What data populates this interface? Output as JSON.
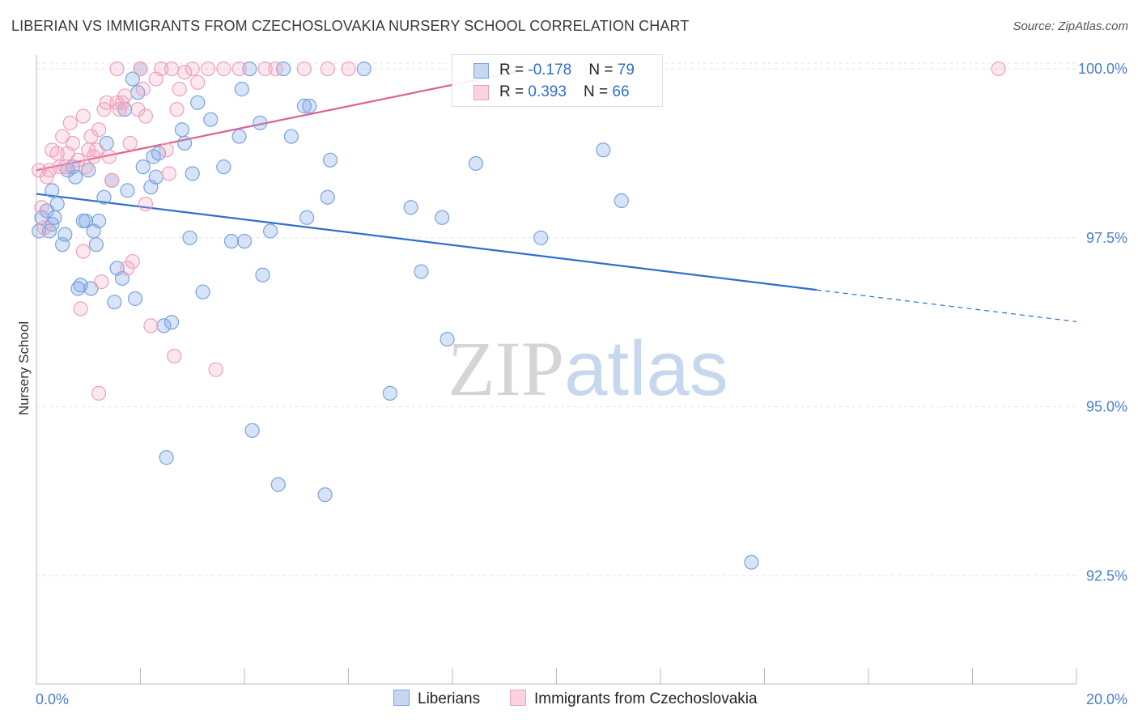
{
  "title": "LIBERIAN VS IMMIGRANTS FROM CZECHOSLOVAKIA NURSERY SCHOOL CORRELATION CHART",
  "source": "Source: ZipAtlas.com",
  "watermark": {
    "zip": "ZIP",
    "atlas": "atlas"
  },
  "legend": {
    "rows": [
      {
        "r_label": "R = ",
        "r_value": "-0.178",
        "n_label": "N = ",
        "n_value": "79"
      },
      {
        "r_label": "R = ",
        "r_value": " 0.393",
        "n_label": "N = ",
        "n_value": "66"
      }
    ]
  },
  "bottom_legend": {
    "series1": "Liberians",
    "series2": "Immigrants from Czechoslovakia"
  },
  "colors": {
    "blue": "#7aa3e0",
    "blue_line": "#2f6fcc",
    "pink": "#f0a0bb",
    "pink_line": "#e0608a",
    "label": "#4a7fd0"
  },
  "chart_data": {
    "type": "scatter",
    "ylabel": "Nursery School",
    "xlim": [
      0,
      20
    ],
    "ylim": [
      90.9,
      100.3
    ],
    "x_tick_labels": [
      "0.0%",
      "20.0%"
    ],
    "y_tick_labels": [
      "100.0%",
      "97.5%",
      "95.0%",
      "92.5%"
    ],
    "y_ticks": [
      100.0,
      97.5,
      95.0,
      92.5
    ],
    "grid": true,
    "series": [
      {
        "name": "Liberians",
        "color": "#7aa3e0",
        "trend": {
          "x": [
            0.0,
            15.0
          ],
          "y": [
            98.15,
            96.73
          ],
          "dashed_to": [
            20.0,
            96.26
          ]
        },
        "points": [
          [
            0.05,
            97.6
          ],
          [
            0.1,
            97.8
          ],
          [
            0.2,
            97.9
          ],
          [
            0.25,
            97.6
          ],
          [
            0.3,
            97.7
          ],
          [
            0.35,
            97.8
          ],
          [
            0.3,
            98.2
          ],
          [
            0.4,
            98.0
          ],
          [
            0.5,
            97.4
          ],
          [
            0.55,
            97.55
          ],
          [
            0.6,
            98.5
          ],
          [
            0.7,
            98.55
          ],
          [
            0.75,
            98.4
          ],
          [
            0.8,
            96.75
          ],
          [
            0.9,
            97.75
          ],
          [
            0.95,
            97.75
          ],
          [
            0.85,
            96.8
          ],
          [
            1.0,
            98.5
          ],
          [
            1.05,
            96.75
          ],
          [
            1.1,
            97.6
          ],
          [
            1.15,
            97.4
          ],
          [
            1.2,
            97.75
          ],
          [
            1.3,
            98.1
          ],
          [
            1.35,
            98.9
          ],
          [
            1.45,
            98.35
          ],
          [
            1.5,
            96.55
          ],
          [
            1.55,
            97.05
          ],
          [
            1.65,
            96.9
          ],
          [
            1.7,
            99.4
          ],
          [
            1.75,
            98.2
          ],
          [
            1.85,
            99.85
          ],
          [
            1.9,
            96.6
          ],
          [
            1.95,
            99.65
          ],
          [
            2.0,
            100.0
          ],
          [
            2.05,
            98.55
          ],
          [
            2.2,
            98.25
          ],
          [
            2.25,
            98.7
          ],
          [
            2.3,
            98.4
          ],
          [
            2.35,
            98.75
          ],
          [
            2.45,
            96.2
          ],
          [
            2.5,
            94.25
          ],
          [
            2.6,
            96.25
          ],
          [
            2.8,
            99.1
          ],
          [
            2.85,
            98.9
          ],
          [
            2.95,
            97.5
          ],
          [
            3.0,
            98.45
          ],
          [
            3.1,
            99.5
          ],
          [
            3.2,
            96.7
          ],
          [
            3.35,
            99.25
          ],
          [
            3.6,
            98.55
          ],
          [
            3.75,
            97.45
          ],
          [
            3.9,
            99.0
          ],
          [
            3.95,
            99.7
          ],
          [
            4.0,
            97.45
          ],
          [
            4.15,
            94.65
          ],
          [
            4.1,
            100.0
          ],
          [
            4.3,
            99.2
          ],
          [
            4.35,
            96.95
          ],
          [
            4.5,
            97.6
          ],
          [
            4.65,
            93.85
          ],
          [
            4.75,
            100.0
          ],
          [
            4.9,
            99.0
          ],
          [
            5.2,
            97.8
          ],
          [
            5.15,
            99.45
          ],
          [
            5.25,
            99.45
          ],
          [
            5.55,
            93.7
          ],
          [
            5.6,
            98.1
          ],
          [
            5.65,
            98.65
          ],
          [
            6.3,
            100.0
          ],
          [
            6.8,
            95.2
          ],
          [
            7.2,
            97.95
          ],
          [
            7.4,
            97.0
          ],
          [
            7.8,
            97.8
          ],
          [
            7.9,
            96.0
          ],
          [
            8.45,
            98.6
          ],
          [
            9.7,
            97.5
          ],
          [
            10.9,
            98.8
          ],
          [
            11.25,
            98.05
          ],
          [
            13.75,
            92.7
          ]
        ]
      },
      {
        "name": "Immigrants from Czechoslovakia",
        "color": "#f0a0bb",
        "trend": {
          "x": [
            0.0,
            9.5
          ],
          "y": [
            98.5,
            100.0
          ]
        },
        "points": [
          [
            0.05,
            98.5
          ],
          [
            0.1,
            97.95
          ],
          [
            0.15,
            97.65
          ],
          [
            0.2,
            98.4
          ],
          [
            0.25,
            98.5
          ],
          [
            0.3,
            98.8
          ],
          [
            0.4,
            98.75
          ],
          [
            0.45,
            98.55
          ],
          [
            0.5,
            99.0
          ],
          [
            0.55,
            98.55
          ],
          [
            0.6,
            98.75
          ],
          [
            0.65,
            99.2
          ],
          [
            0.7,
            98.9
          ],
          [
            0.8,
            98.65
          ],
          [
            0.85,
            96.45
          ],
          [
            0.9,
            99.3
          ],
          [
            0.9,
            97.3
          ],
          [
            0.95,
            98.55
          ],
          [
            1.0,
            98.8
          ],
          [
            1.05,
            99.0
          ],
          [
            1.1,
            98.7
          ],
          [
            1.15,
            98.8
          ],
          [
            1.2,
            99.1
          ],
          [
            1.2,
            95.2
          ],
          [
            1.25,
            96.85
          ],
          [
            1.3,
            99.4
          ],
          [
            1.35,
            99.5
          ],
          [
            1.4,
            98.7
          ],
          [
            1.45,
            98.35
          ],
          [
            1.55,
            99.5
          ],
          [
            1.6,
            99.4
          ],
          [
            1.65,
            99.5
          ],
          [
            1.7,
            99.6
          ],
          [
            1.55,
            100.0
          ],
          [
            1.75,
            97.05
          ],
          [
            1.8,
            98.9
          ],
          [
            1.85,
            97.15
          ],
          [
            1.95,
            99.4
          ],
          [
            2.0,
            100.0
          ],
          [
            2.05,
            99.7
          ],
          [
            2.1,
            98.0
          ],
          [
            2.1,
            99.3
          ],
          [
            2.2,
            96.2
          ],
          [
            2.3,
            99.85
          ],
          [
            2.4,
            100.0
          ],
          [
            2.5,
            98.8
          ],
          [
            2.55,
            98.45
          ],
          [
            2.6,
            100.0
          ],
          [
            2.65,
            95.75
          ],
          [
            2.7,
            99.4
          ],
          [
            2.75,
            99.7
          ],
          [
            2.85,
            99.95
          ],
          [
            3.0,
            100.0
          ],
          [
            3.1,
            99.8
          ],
          [
            3.3,
            100.0
          ],
          [
            3.45,
            95.55
          ],
          [
            3.6,
            100.0
          ],
          [
            3.9,
            100.0
          ],
          [
            4.4,
            100.0
          ],
          [
            4.6,
            100.0
          ],
          [
            5.15,
            100.0
          ],
          [
            5.6,
            100.0
          ],
          [
            6.0,
            100.0
          ],
          [
            9.5,
            100.0
          ],
          [
            10.7,
            100.0
          ],
          [
            18.5,
            100.0
          ]
        ]
      }
    ]
  }
}
